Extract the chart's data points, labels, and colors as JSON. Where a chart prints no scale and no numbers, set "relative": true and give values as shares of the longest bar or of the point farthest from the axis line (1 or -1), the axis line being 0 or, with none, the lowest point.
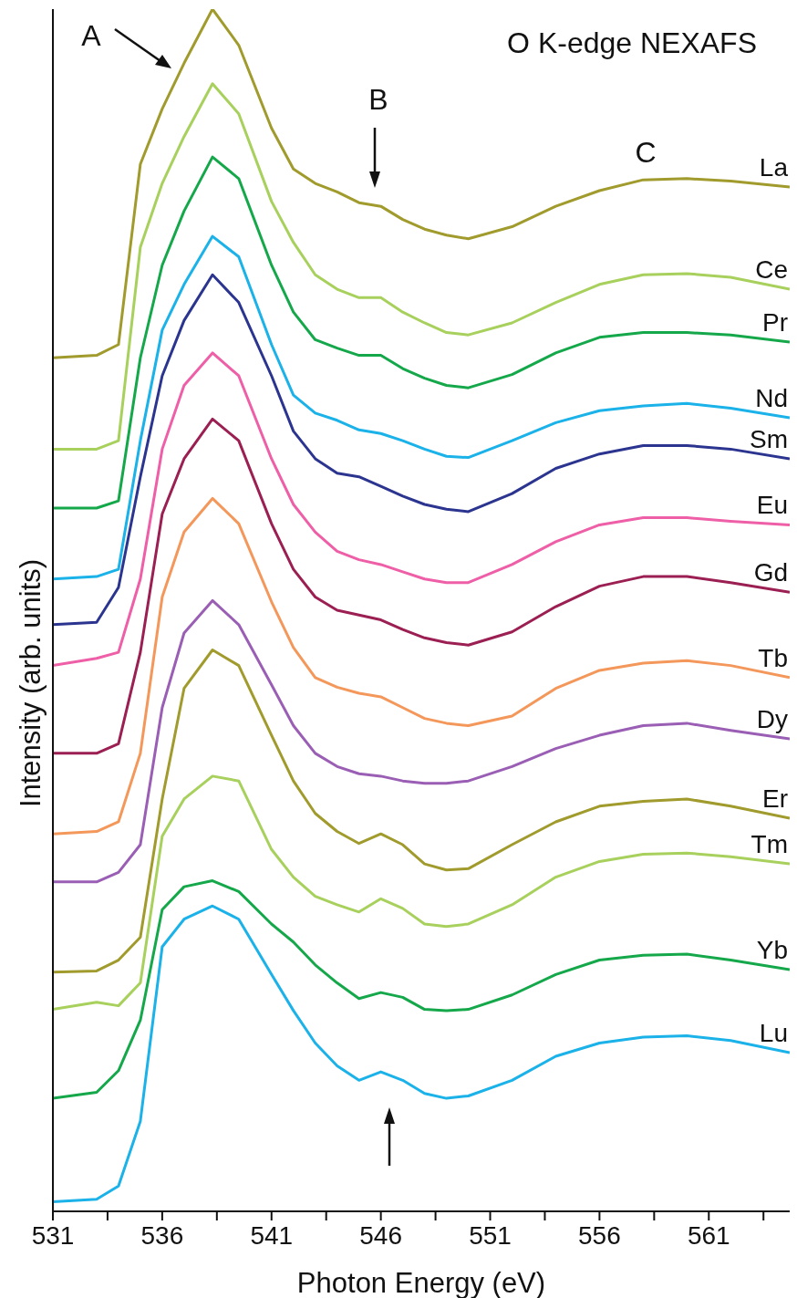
{
  "chart_data": {
    "type": "line",
    "relative": true,
    "title": "O K-edge NEXAFS",
    "xlabel": "Photon Energy (eV)",
    "ylabel": "Intensity (arb. units)",
    "x": [
      531,
      533,
      534,
      535,
      536,
      537,
      538.3,
      539.5,
      541,
      542,
      543,
      544,
      545,
      546,
      547,
      548,
      549,
      550,
      552,
      554,
      556,
      558,
      560,
      562,
      564.7
    ],
    "xlim": [
      531,
      564.7
    ],
    "xticks": [
      531,
      {
        "value": 533.5,
        "label": null
      },
      536,
      {
        "value": 538.5,
        "label": null
      },
      541,
      {
        "value": 543.5,
        "label": null
      },
      546,
      {
        "value": 548.5,
        "label": null
      },
      551,
      {
        "value": 553.5,
        "label": null
      },
      556,
      {
        "value": 558.5,
        "label": null
      },
      561,
      {
        "value": 563.5,
        "label": null
      }
    ],
    "marker": "none",
    "line_style": "solid",
    "annotations": [
      "A",
      "B",
      "C"
    ],
    "series": [
      {
        "name": "La",
        "color": "#a09b2c",
        "values": [
          0.71,
          0.712,
          0.721,
          0.871,
          0.917,
          0.955,
          1.0,
          0.97,
          0.901,
          0.867,
          0.855,
          0.848,
          0.839,
          0.836,
          0.825,
          0.817,
          0.812,
          0.809,
          0.819,
          0.836,
          0.849,
          0.858,
          0.859,
          0.857,
          0.852
        ]
      },
      {
        "name": "Ce",
        "color": "#a8d05c",
        "values": [
          0.634,
          0.634,
          0.641,
          0.802,
          0.855,
          0.894,
          0.938,
          0.913,
          0.84,
          0.806,
          0.779,
          0.767,
          0.76,
          0.76,
          0.748,
          0.739,
          0.731,
          0.729,
          0.739,
          0.756,
          0.771,
          0.779,
          0.78,
          0.777,
          0.767
        ]
      },
      {
        "name": "Pr",
        "color": "#15a84b",
        "values": [
          0.585,
          0.585,
          0.591,
          0.71,
          0.787,
          0.832,
          0.877,
          0.859,
          0.787,
          0.748,
          0.725,
          0.718,
          0.712,
          0.712,
          0.701,
          0.693,
          0.687,
          0.685,
          0.696,
          0.714,
          0.727,
          0.731,
          0.731,
          0.729,
          0.723
        ]
      },
      {
        "name": "Nd",
        "color": "#1ab2e8",
        "values": [
          0.526,
          0.528,
          0.534,
          0.641,
          0.733,
          0.771,
          0.811,
          0.794,
          0.721,
          0.679,
          0.664,
          0.658,
          0.65,
          0.647,
          0.641,
          0.634,
          0.628,
          0.627,
          0.641,
          0.656,
          0.666,
          0.67,
          0.672,
          0.668,
          0.66
        ]
      },
      {
        "name": "Sm",
        "color": "#2b3590",
        "values": [
          0.488,
          0.49,
          0.519,
          0.611,
          0.695,
          0.741,
          0.779,
          0.756,
          0.695,
          0.649,
          0.626,
          0.614,
          0.611,
          0.603,
          0.595,
          0.588,
          0.584,
          0.582,
          0.597,
          0.618,
          0.63,
          0.637,
          0.637,
          0.634,
          0.626
        ]
      },
      {
        "name": "Eu",
        "color": "#ee5fa7",
        "values": [
          0.454,
          0.46,
          0.465,
          0.526,
          0.634,
          0.687,
          0.714,
          0.695,
          0.626,
          0.588,
          0.565,
          0.549,
          0.542,
          0.538,
          0.532,
          0.526,
          0.523,
          0.523,
          0.538,
          0.557,
          0.571,
          0.577,
          0.577,
          0.574,
          0.571
        ]
      },
      {
        "name": "Gd",
        "color": "#9b1f52",
        "values": [
          0.381,
          0.381,
          0.389,
          0.465,
          0.58,
          0.626,
          0.659,
          0.641,
          0.572,
          0.534,
          0.511,
          0.5,
          0.496,
          0.492,
          0.484,
          0.477,
          0.473,
          0.471,
          0.482,
          0.503,
          0.52,
          0.528,
          0.528,
          0.523,
          0.515
        ]
      },
      {
        "name": "Tb",
        "color": "#f4975a",
        "values": [
          0.314,
          0.316,
          0.324,
          0.381,
          0.511,
          0.565,
          0.593,
          0.572,
          0.507,
          0.469,
          0.444,
          0.436,
          0.431,
          0.428,
          0.419,
          0.41,
          0.406,
          0.404,
          0.412,
          0.435,
          0.45,
          0.456,
          0.458,
          0.454,
          0.444
        ]
      },
      {
        "name": "Dy",
        "color": "#9a5fb5",
        "values": [
          0.274,
          0.274,
          0.282,
          0.305,
          0.419,
          0.481,
          0.508,
          0.488,
          0.438,
          0.404,
          0.381,
          0.37,
          0.364,
          0.362,
          0.358,
          0.356,
          0.356,
          0.358,
          0.37,
          0.385,
          0.396,
          0.404,
          0.406,
          0.4,
          0.393
        ]
      },
      {
        "name": "Er",
        "color": "#a09b2c",
        "values": [
          0.199,
          0.2,
          0.209,
          0.228,
          0.343,
          0.435,
          0.467,
          0.454,
          0.396,
          0.358,
          0.331,
          0.316,
          0.306,
          0.314,
          0.305,
          0.289,
          0.284,
          0.285,
          0.305,
          0.324,
          0.337,
          0.341,
          0.343,
          0.337,
          0.327
        ]
      },
      {
        "name": "Tm",
        "color": "#a8d05c",
        "values": [
          0.168,
          0.174,
          0.171,
          0.19,
          0.312,
          0.343,
          0.362,
          0.358,
          0.301,
          0.278,
          0.262,
          0.255,
          0.249,
          0.26,
          0.252,
          0.239,
          0.237,
          0.239,
          0.255,
          0.278,
          0.291,
          0.297,
          0.298,
          0.295,
          0.289
        ]
      },
      {
        "name": "Yb",
        "color": "#15a84b",
        "values": [
          0.094,
          0.099,
          0.117,
          0.159,
          0.251,
          0.27,
          0.275,
          0.266,
          0.239,
          0.224,
          0.205,
          0.19,
          0.177,
          0.182,
          0.178,
          0.168,
          0.167,
          0.168,
          0.18,
          0.197,
          0.209,
          0.213,
          0.214,
          0.209,
          0.201
        ]
      },
      {
        "name": "Lu",
        "color": "#1ab2e8",
        "values": [
          0.008,
          0.01,
          0.021,
          0.075,
          0.22,
          0.243,
          0.254,
          0.243,
          0.197,
          0.167,
          0.14,
          0.121,
          0.109,
          0.116,
          0.109,
          0.098,
          0.094,
          0.096,
          0.109,
          0.129,
          0.14,
          0.145,
          0.146,
          0.142,
          0.132
        ]
      }
    ]
  }
}
